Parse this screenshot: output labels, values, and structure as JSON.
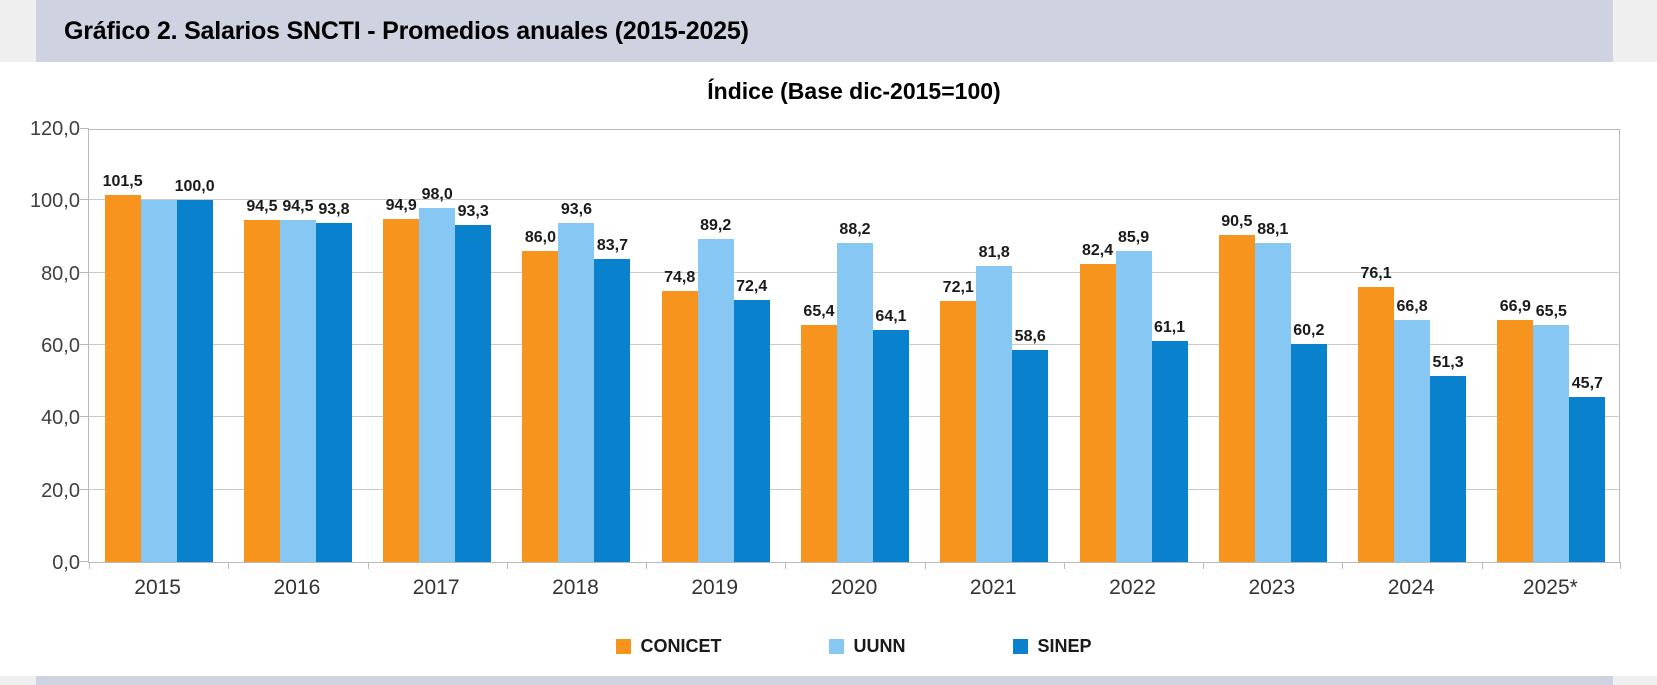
{
  "header": {
    "title": "Gráfico 2. Salarios SNCTI - Promedios anuales (2015-2025)"
  },
  "colors": {
    "header_band": "#cfd3e1",
    "page_margin": "#efefef",
    "gridline": "#c9c9c9",
    "conicet": "#f7941d",
    "uunn": "#86c7f3",
    "sinep": "#0a81cc"
  },
  "chart_data": {
    "type": "bar",
    "title": "Índice (Base dic-2015=100)",
    "xlabel": "",
    "ylabel": "",
    "ylim": [
      0,
      120
    ],
    "ytick_step": 20,
    "ytick_labels": [
      "0,0",
      "20,0",
      "40,0",
      "60,0",
      "80,0",
      "100,0",
      "120,0"
    ],
    "grid": true,
    "legend_position": "bottom",
    "categories": [
      "2015",
      "2016",
      "2017",
      "2018",
      "2019",
      "2020",
      "2021",
      "2022",
      "2023",
      "2024",
      "2025*"
    ],
    "series": [
      {
        "name": "CONICET",
        "color": "#f7941d",
        "values": [
          101.5,
          94.5,
          94.9,
          86.0,
          74.8,
          65.4,
          72.1,
          82.4,
          90.5,
          76.1,
          66.9
        ],
        "labels": [
          "101,5",
          "94,5",
          "94,9",
          "86,0",
          "74,8",
          "65,4",
          "72,1",
          "82,4",
          "90,5",
          "76,1",
          "66,9"
        ]
      },
      {
        "name": "UUNN",
        "color": "#86c7f3",
        "values": [
          100.0,
          94.5,
          98.0,
          93.6,
          89.2,
          88.2,
          81.8,
          85.9,
          88.1,
          66.8,
          65.5
        ],
        "labels": [
          "",
          "94,5",
          "98,0",
          "93,6",
          "89,2",
          "88,2",
          "81,8",
          "85,9",
          "88,1",
          "66,8",
          "65,5"
        ]
      },
      {
        "name": "SINEP",
        "color": "#0a81cc",
        "values": [
          100.0,
          93.8,
          93.3,
          83.7,
          72.4,
          64.1,
          58.6,
          61.1,
          60.2,
          51.3,
          45.7
        ],
        "labels": [
          "100,0",
          "93,8",
          "93,3",
          "83,7",
          "72,4",
          "64,1",
          "58,6",
          "61,1",
          "60,2",
          "51,3",
          "45,7"
        ]
      }
    ]
  }
}
